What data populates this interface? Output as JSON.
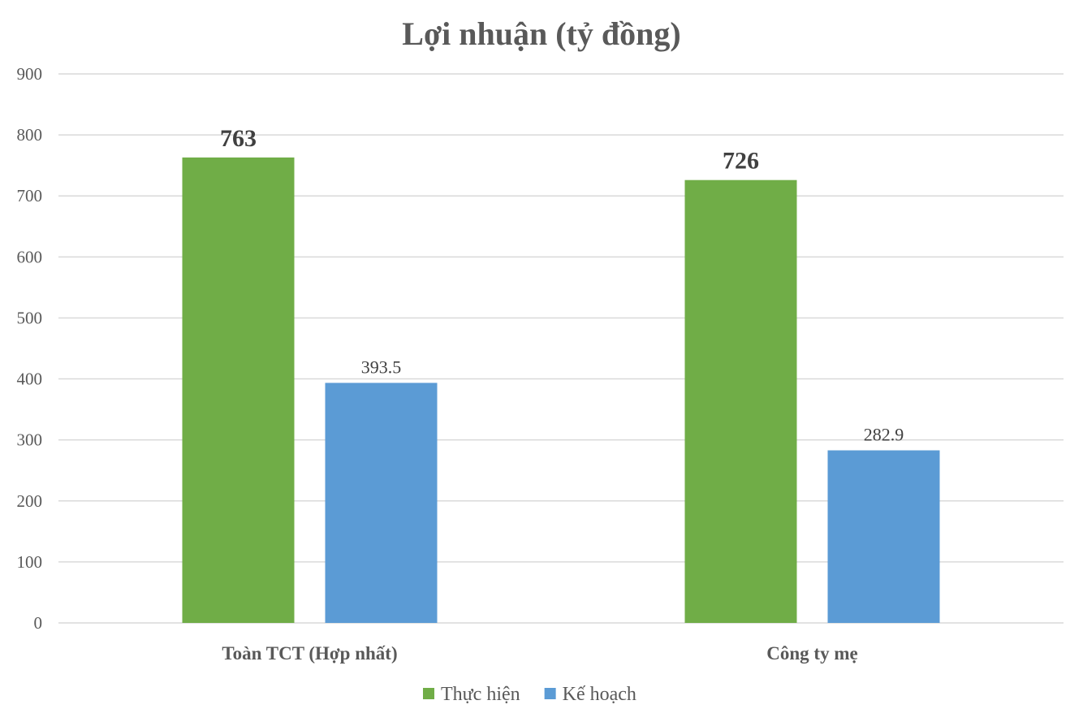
{
  "chart_data": {
    "type": "bar",
    "title": "Lợi nhuận (tỷ đồng)",
    "xlabel": "",
    "ylabel": "",
    "categories": [
      "Toàn TCT (Hợp nhất)",
      "Công ty mẹ"
    ],
    "series": [
      {
        "name": "Thực hiện",
        "values": [
          763,
          726
        ],
        "color": "#70AD47",
        "labels": [
          "763",
          "726"
        ],
        "label_bold": true
      },
      {
        "name": "Kế hoạch",
        "values": [
          393.5,
          282.9
        ],
        "color": "#5B9BD5",
        "labels": [
          "393.5",
          "282.9"
        ],
        "label_bold": false
      }
    ],
    "ylim": [
      0,
      900
    ],
    "yticks": [
      0,
      100,
      200,
      300,
      400,
      500,
      600,
      700,
      800,
      900
    ],
    "grid": true,
    "legend": "bottom-center"
  }
}
